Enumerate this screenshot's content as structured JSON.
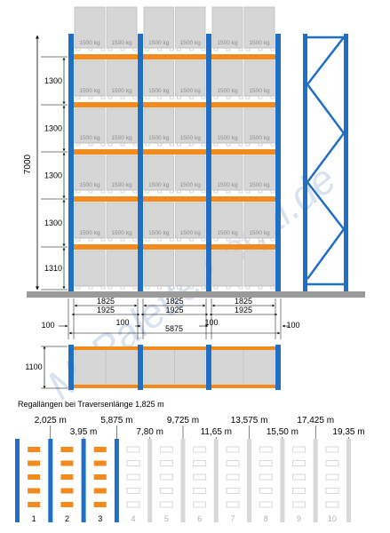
{
  "colors": {
    "upright": "#1f6fc4",
    "beam": "#f28a1e",
    "pallet_face": "#d6d6d6",
    "pallet_edge": "#bdbdbd",
    "floor": "#9a9a9a",
    "dim_line": "#000000",
    "watermark": "#b9cbe6",
    "inactive_bay": "#d8d8d8"
  },
  "rack": {
    "load_label": "1500 kg",
    "levels": [
      {
        "height": "1310"
      },
      {
        "height": "1300"
      },
      {
        "height": "1300"
      },
      {
        "height": "1300"
      },
      {
        "height": "1300"
      }
    ],
    "total_height": "7000",
    "bay_inner_widths": [
      "1825",
      "1825",
      "1825"
    ],
    "bay_center_widths": [
      "1925",
      "1925",
      "1925"
    ],
    "gaps": [
      "100",
      "100",
      "100",
      "100"
    ],
    "total_length": "5875",
    "depth": "1100"
  },
  "watermark_text": "McPalettenregal.de",
  "lengths_caption": "Regallängen bei Traversenlänge 1,825 m",
  "bay_lengths": [
    {
      "label": "2,025 m",
      "number": "1",
      "active": true
    },
    {
      "label": "3,95 m",
      "number": "2",
      "active": true
    },
    {
      "label": "5,875 m",
      "number": "3",
      "active": true
    },
    {
      "label": "7,80 m",
      "number": "4",
      "active": false
    },
    {
      "label": "9,725 m",
      "number": "5",
      "active": false
    },
    {
      "label": "11,65 m",
      "number": "6",
      "active": false
    },
    {
      "label": "13,575 m",
      "number": "7",
      "active": false
    },
    {
      "label": "15,50 m",
      "number": "8",
      "active": false
    },
    {
      "label": "17,425 m",
      "number": "9",
      "active": false
    },
    {
      "label": "19,35 m",
      "number": "10",
      "active": false
    }
  ]
}
